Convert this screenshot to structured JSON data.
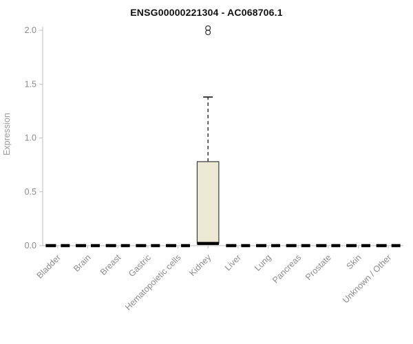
{
  "chart_data": {
    "type": "boxplot",
    "title": "ENSG00000221304 - AC068706.1",
    "ylabel": "Expression",
    "ylim": [
      0,
      2.0
    ],
    "yticks": [
      0,
      0.5,
      1.0,
      1.5,
      2.0
    ],
    "grid": false,
    "legend": "none",
    "categories": [
      "Bladder",
      "Brain",
      "Breast",
      "Gastric",
      "Hematopoietic cells",
      "Kidney",
      "Liver",
      "Lung",
      "Pancreas",
      "Prostate",
      "Skin",
      "Unknown / Other"
    ],
    "series": [
      {
        "category": "Bladder",
        "min": 0,
        "q1": 0,
        "median": 0,
        "q3": 0,
        "max": 0,
        "outliers": []
      },
      {
        "category": "Brain",
        "min": 0,
        "q1": 0,
        "median": 0,
        "q3": 0,
        "max": 0,
        "outliers": []
      },
      {
        "category": "Breast",
        "min": 0,
        "q1": 0,
        "median": 0,
        "q3": 0,
        "max": 0,
        "outliers": []
      },
      {
        "category": "Gastric",
        "min": 0,
        "q1": 0,
        "median": 0,
        "q3": 0,
        "max": 0,
        "outliers": []
      },
      {
        "category": "Hematopoietic cells",
        "min": 0,
        "q1": 0,
        "median": 0,
        "q3": 0,
        "max": 0,
        "outliers": []
      },
      {
        "category": "Kidney",
        "min": 0.02,
        "q1": 0.02,
        "median": 0.02,
        "q3": 0.78,
        "max": 1.38,
        "outliers": [
          2.02,
          1.98
        ]
      },
      {
        "category": "Liver",
        "min": 0,
        "q1": 0,
        "median": 0,
        "q3": 0,
        "max": 0,
        "outliers": []
      },
      {
        "category": "Lung",
        "min": 0,
        "q1": 0,
        "median": 0,
        "q3": 0,
        "max": 0,
        "outliers": []
      },
      {
        "category": "Pancreas",
        "min": 0,
        "q1": 0,
        "median": 0,
        "q3": 0,
        "max": 0,
        "outliers": []
      },
      {
        "category": "Prostate",
        "min": 0,
        "q1": 0,
        "median": 0,
        "q3": 0,
        "max": 0,
        "outliers": []
      },
      {
        "category": "Skin",
        "min": 0,
        "q1": 0,
        "median": 0,
        "q3": 0,
        "max": 0,
        "outliers": []
      },
      {
        "category": "Unknown / Other",
        "min": 0,
        "q1": 0,
        "median": 0,
        "q3": 0,
        "max": 0,
        "outliers": []
      }
    ],
    "colors": {
      "title": "#111111",
      "axis": "#bdbdbd",
      "tick_label": "#8c8c8c",
      "box_fill": "#ede8d3",
      "box_stroke": "#3a3a3a",
      "median": "#000000"
    }
  }
}
